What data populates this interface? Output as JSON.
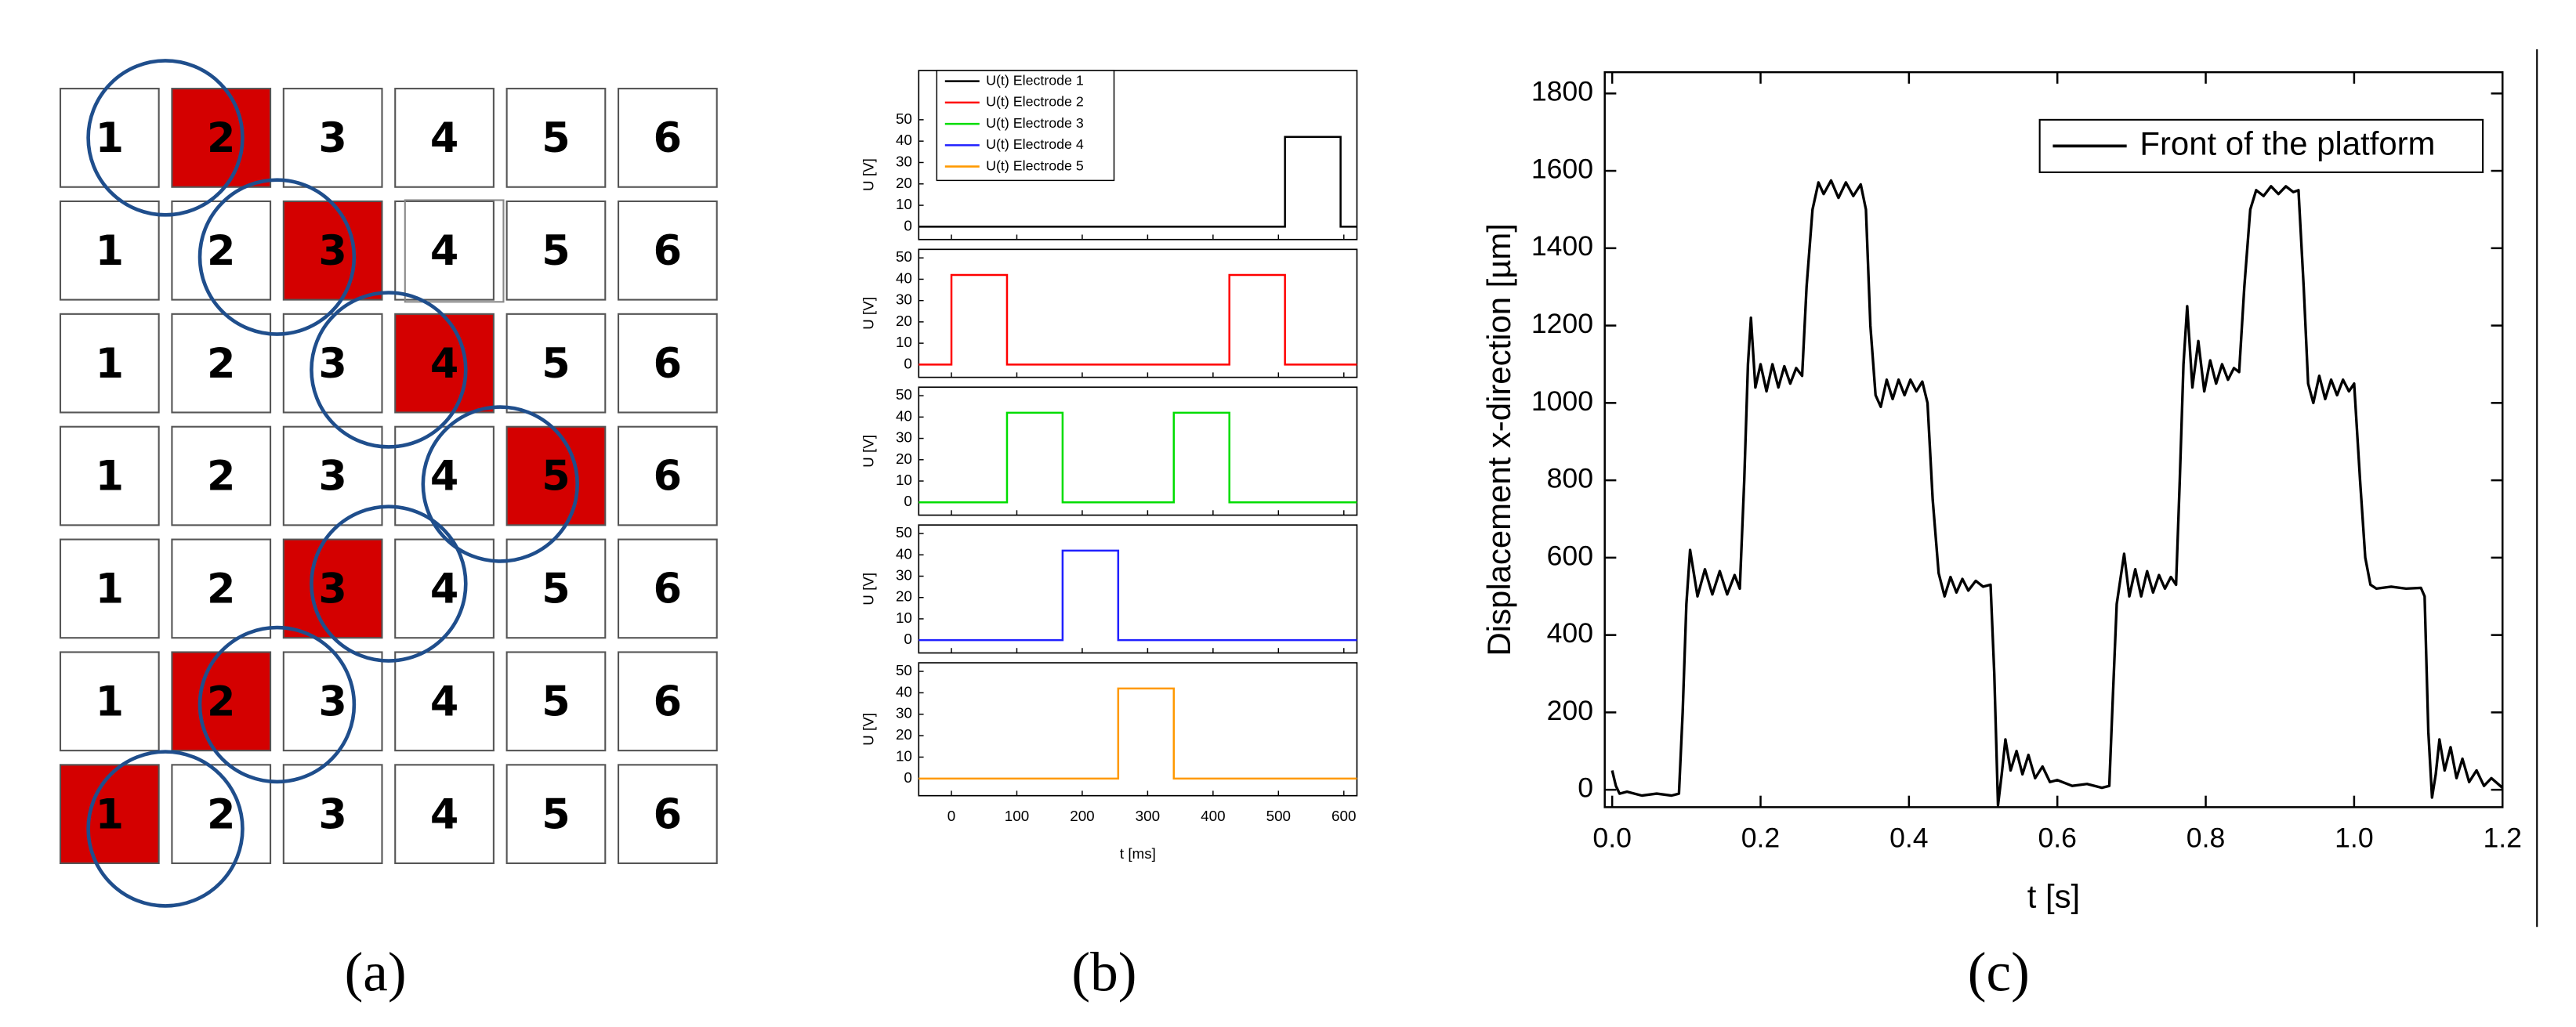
{
  "panel_a": {
    "rows": [
      [
        "1",
        "2",
        "3",
        "4",
        "5",
        "6"
      ],
      [
        "1",
        "2",
        "3",
        "4",
        "5",
        "6"
      ],
      [
        "1",
        "2",
        "3",
        "4",
        "5",
        "6"
      ],
      [
        "1",
        "2",
        "3",
        "4",
        "5",
        "6"
      ],
      [
        "1",
        "2",
        "3",
        "4",
        "5",
        "6"
      ],
      [
        "1",
        "2",
        "3",
        "4",
        "5",
        "6"
      ],
      [
        "1",
        "2",
        "3",
        "4",
        "5",
        "6"
      ]
    ]
  },
  "captions": [
    "(a)",
    "(b)",
    "(c)"
  ],
  "chart_data": [
    {
      "type": "line",
      "xlabel": "t [ms]",
      "xlim": [
        -50,
        620
      ],
      "xticks": [
        0,
        100,
        200,
        300,
        400,
        500,
        600
      ],
      "legend": "upper left",
      "subplots": [
        {
          "ylabel": "U [V]",
          "ylim": [
            -6,
            73
          ],
          "yticks": [
            0,
            10,
            20,
            30,
            40,
            50
          ],
          "series": [
            {
              "name": "U(t) Electrode 1",
              "color": "#000000",
              "x": [
                -50,
                510,
                510,
                595,
                595,
                620
              ],
              "values": [
                0,
                0,
                42,
                42,
                0,
                0
              ]
            }
          ]
        },
        {
          "ylabel": "U [V]",
          "ylim": [
            -6,
            54
          ],
          "yticks": [
            0,
            10,
            20,
            30,
            40,
            50
          ],
          "series": [
            {
              "name": "U(t) Electrode 2",
              "color": "#ff0000",
              "x": [
                -50,
                0,
                0,
                85,
                85,
                425,
                425,
                510,
                510,
                620
              ],
              "values": [
                0,
                0,
                42,
                42,
                0,
                0,
                42,
                42,
                0,
                0
              ]
            }
          ]
        },
        {
          "ylabel": "U [V]",
          "ylim": [
            -6,
            54
          ],
          "yticks": [
            0,
            10,
            20,
            30,
            40,
            50
          ],
          "series": [
            {
              "name": "U(t) Electrode 3",
              "color": "#00dd00",
              "x": [
                -50,
                85,
                85,
                170,
                170,
                340,
                340,
                425,
                425,
                620
              ],
              "values": [
                0,
                0,
                42,
                42,
                0,
                0,
                42,
                42,
                0,
                0
              ]
            }
          ]
        },
        {
          "ylabel": "U [V]",
          "ylim": [
            -6,
            54
          ],
          "yticks": [
            0,
            10,
            20,
            30,
            40,
            50
          ],
          "series": [
            {
              "name": "U(t) Electrode 4",
              "color": "#2020ff",
              "x": [
                -50,
                170,
                170,
                255,
                255,
                620
              ],
              "values": [
                0,
                0,
                42,
                42,
                0,
                0
              ]
            }
          ]
        },
        {
          "ylabel": "U [V]",
          "ylim": [
            -8,
            54
          ],
          "yticks": [
            0,
            10,
            20,
            30,
            40,
            50
          ],
          "series": [
            {
              "name": "U(t) Electrode 5",
              "color": "#ff9900",
              "x": [
                -50,
                255,
                255,
                340,
                340,
                620
              ],
              "values": [
                0,
                0,
                42,
                42,
                0,
                0
              ]
            }
          ]
        }
      ]
    },
    {
      "type": "line",
      "xlabel": "t [s]",
      "ylabel": "Displacement x-direction [µm]",
      "xlim": [
        -0.01,
        1.2
      ],
      "ylim": [
        -45,
        1855
      ],
      "xticks": [
        {
          "value": 0,
          "label": "0.0"
        },
        0.2,
        0.4,
        0.6,
        0.8,
        {
          "value": 1,
          "label": "1.0"
        },
        1.2
      ],
      "yticks": [
        0,
        200,
        400,
        600,
        800,
        1000,
        1200,
        1400,
        1600,
        1800
      ],
      "legend": "upper right",
      "series": [
        {
          "name": "Front of the platform",
          "color": "#000000",
          "x": [
            0,
            0.005,
            0.01,
            0.02,
            0.04,
            0.06,
            0.08,
            0.09,
            0.095,
            0.1,
            0.105,
            0.11,
            0.115,
            0.125,
            0.135,
            0.145,
            0.155,
            0.165,
            0.172,
            0.178,
            0.183,
            0.187,
            0.193,
            0.2,
            0.208,
            0.216,
            0.224,
            0.232,
            0.24,
            0.248,
            0.256,
            0.262,
            0.27,
            0.278,
            0.285,
            0.295,
            0.305,
            0.315,
            0.325,
            0.335,
            0.342,
            0.348,
            0.355,
            0.362,
            0.37,
            0.378,
            0.386,
            0.394,
            0.402,
            0.41,
            0.418,
            0.425,
            0.432,
            0.44,
            0.448,
            0.456,
            0.464,
            0.472,
            0.48,
            0.49,
            0.5,
            0.51,
            0.515,
            0.52,
            0.525,
            0.53,
            0.537,
            0.545,
            0.553,
            0.561,
            0.57,
            0.58,
            0.59,
            0.6,
            0.62,
            0.64,
            0.66,
            0.67,
            0.675,
            0.68,
            0.69,
            0.697,
            0.705,
            0.713,
            0.721,
            0.729,
            0.737,
            0.745,
            0.753,
            0.76,
            0.765,
            0.77,
            0.775,
            0.782,
            0.79,
            0.798,
            0.806,
            0.814,
            0.822,
            0.83,
            0.838,
            0.845,
            0.852,
            0.86,
            0.868,
            0.878,
            0.888,
            0.898,
            0.908,
            0.918,
            0.925,
            0.932,
            0.938,
            0.945,
            0.953,
            0.961,
            0.969,
            0.977,
            0.985,
            0.993,
            1.0,
            1.008,
            1.015,
            1.022,
            1.03,
            1.05,
            1.07,
            1.09,
            1.095,
            1.1,
            1.105,
            1.11,
            1.115,
            1.122,
            1.13,
            1.138,
            1.146,
            1.155,
            1.165,
            1.175,
            1.185,
            1.2
          ],
          "values": [
            50,
            10,
            -10,
            -5,
            -15,
            -10,
            -15,
            -10,
            200,
            480,
            620,
            560,
            500,
            570,
            505,
            565,
            505,
            555,
            520,
            800,
            1100,
            1220,
            1040,
            1100,
            1030,
            1100,
            1040,
            1095,
            1050,
            1090,
            1070,
            1300,
            1500,
            1570,
            1540,
            1575,
            1530,
            1570,
            1535,
            1565,
            1500,
            1200,
            1020,
            990,
            1060,
            1010,
            1060,
            1020,
            1060,
            1030,
            1055,
            1000,
            750,
            560,
            500,
            550,
            510,
            545,
            515,
            540,
            525,
            530,
            300,
            -40,
            40,
            130,
            50,
            100,
            40,
            90,
            30,
            60,
            20,
            25,
            10,
            15,
            5,
            10,
            250,
            480,
            610,
            500,
            570,
            500,
            565,
            510,
            555,
            520,
            550,
            530,
            800,
            1100,
            1250,
            1040,
            1160,
            1030,
            1110,
            1050,
            1100,
            1060,
            1090,
            1080,
            1300,
            1500,
            1550,
            1535,
            1560,
            1540,
            1560,
            1545,
            1550,
            1300,
            1050,
            1000,
            1070,
            1010,
            1060,
            1020,
            1060,
            1030,
            1050,
            800,
            600,
            530,
            520,
            525,
            520,
            522,
            500,
            150,
            -20,
            40,
            130,
            50,
            110,
            30,
            80,
            20,
            50,
            10,
            30,
            5
          ]
        }
      ]
    }
  ]
}
